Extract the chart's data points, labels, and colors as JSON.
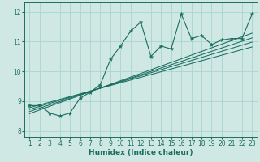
{
  "title": "",
  "xlabel": "Humidex (Indice chaleur)",
  "ylabel": "",
  "bg_color": "#cfe8e4",
  "grid_color": "#a8d4cc",
  "line_color": "#1a6e60",
  "xlim": [
    0.5,
    23.5
  ],
  "ylim": [
    7.8,
    12.3
  ],
  "xticks": [
    1,
    2,
    3,
    4,
    5,
    6,
    7,
    8,
    9,
    10,
    11,
    12,
    13,
    14,
    15,
    16,
    17,
    18,
    19,
    20,
    21,
    22,
    23
  ],
  "yticks": [
    8,
    9,
    10,
    11,
    12
  ],
  "scatter_x": [
    1,
    2,
    3,
    4,
    5,
    6,
    7,
    8,
    9,
    10,
    11,
    12,
    13,
    14,
    15,
    16,
    17,
    18,
    19,
    20,
    21,
    22,
    23
  ],
  "scatter_y": [
    8.85,
    8.85,
    8.6,
    8.5,
    8.6,
    9.1,
    9.3,
    9.55,
    10.4,
    10.85,
    11.35,
    11.65,
    10.5,
    10.85,
    10.75,
    11.92,
    11.1,
    11.2,
    10.9,
    11.05,
    11.1,
    11.1,
    11.92
  ],
  "reg_lines": [
    {
      "x": [
        1,
        23
      ],
      "y": [
        8.78,
        10.82
      ]
    },
    {
      "x": [
        1,
        23
      ],
      "y": [
        8.72,
        10.98
      ]
    },
    {
      "x": [
        1,
        23
      ],
      "y": [
        8.65,
        11.12
      ]
    },
    {
      "x": [
        1,
        23
      ],
      "y": [
        8.58,
        11.28
      ]
    }
  ],
  "tick_fontsize": 5.5,
  "xlabel_fontsize": 6.5
}
